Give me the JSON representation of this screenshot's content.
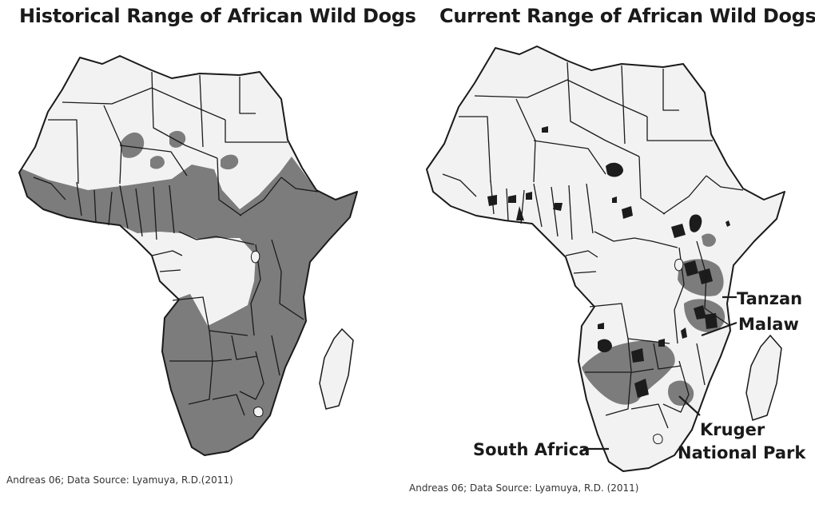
{
  "maps": {
    "historical": {
      "title": "Historical Range of African Wild Dogs",
      "credit": "Andreas 06; Data Source: Lyamuya, R.D.(2011)"
    },
    "current": {
      "title": "Current Range of African Wild Dogs",
      "credit": "Andreas 06; Data Source: Lyamuya, R.D. (2011)",
      "labels": {
        "tanzania": "Tanzan",
        "malawi": "Malaw",
        "kruger_line1": "Kruger",
        "kruger_line2": "National Park",
        "south_africa": "South Africa"
      }
    }
  },
  "colors": {
    "land": "#f2f2f2",
    "range": "#7c7c7c",
    "present_population": "#1c1c1c",
    "border": "#1a1a1a"
  }
}
